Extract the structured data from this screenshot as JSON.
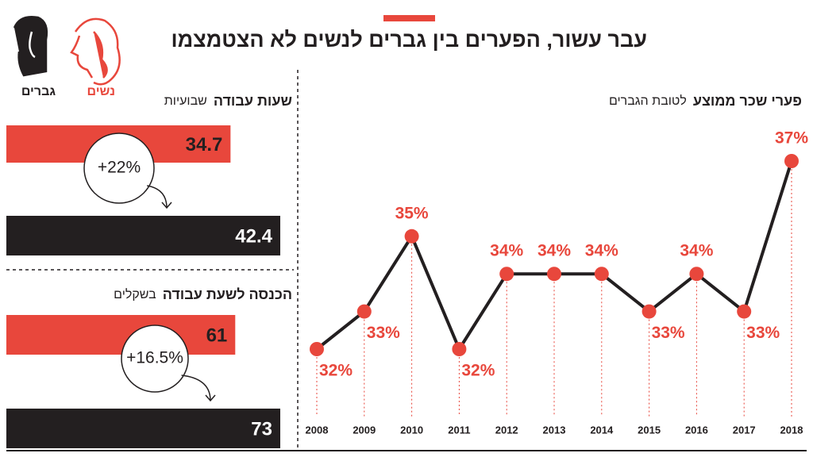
{
  "title": "עבר עשור, הפערים בין גברים לנשים לא הצטמצמו",
  "legend": [
    {
      "name": "נשים",
      "color": "#e8473c"
    },
    {
      "name": "גברים",
      "color": "#231f20"
    }
  ],
  "chart_data": [
    {
      "type": "line",
      "title": "פערי שכר ממוצע",
      "subtitle": "לטובת הגברים",
      "x": [
        2008,
        2009,
        2010,
        2011,
        2012,
        2013,
        2014,
        2015,
        2016,
        2017,
        2018
      ],
      "values": [
        32,
        33,
        35,
        32,
        34,
        34,
        34,
        33,
        34,
        33,
        37
      ],
      "value_labels": [
        "32%",
        "33%",
        "35%",
        "32%",
        "34%",
        "34%",
        "34%",
        "33%",
        "34%",
        "33%",
        "37%"
      ],
      "color": "#231f20",
      "marker_color": "#e8473c"
    },
    {
      "type": "bar",
      "orientation": "horizontal",
      "title": "שעות עבודה",
      "subtitle": "שבועיות",
      "values": [
        34.7,
        42.4
      ],
      "colors": [
        "#e8473c",
        "#231f20"
      ],
      "annotation": "+22%"
    },
    {
      "type": "bar",
      "orientation": "horizontal",
      "title": "הכנסה לשעת עבודה",
      "subtitle": "בשקלים",
      "values": [
        61,
        73
      ],
      "colors": [
        "#e8473c",
        "#231f20"
      ],
      "annotation": "+16.5%"
    }
  ]
}
